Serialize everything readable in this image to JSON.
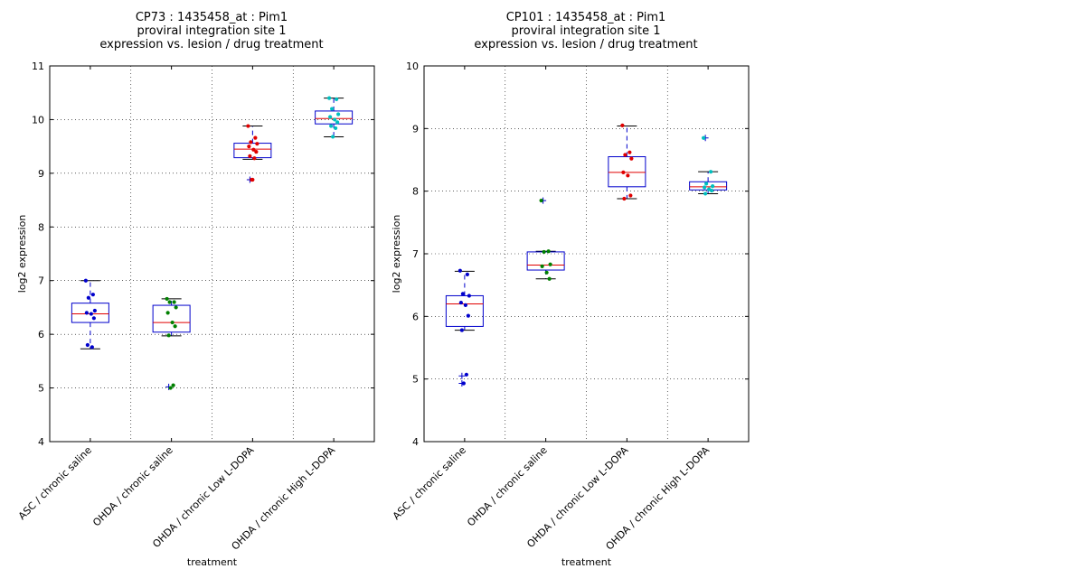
{
  "chart_data": [
    {
      "type": "box",
      "title": [
        "CP73 : 1435458_at : Pim1",
        "proviral integration site 1",
        "expression vs. lesion / drug treatment"
      ],
      "xlabel": "treatment",
      "ylabel": "log2 expression",
      "ylim": [
        4,
        11
      ],
      "yticks": [
        4,
        5,
        6,
        7,
        8,
        9,
        10,
        11
      ],
      "grid": true,
      "categories": [
        "ASC / chronic saline",
        "OHDA / chronic saline",
        "OHDA / chronic Low L-DOPA",
        "OHDA / chronic High L-DOPA"
      ],
      "colors": [
        "#0000cc",
        "#008000",
        "#e00000",
        "#00bfbf"
      ],
      "boxes": [
        {
          "q1": 6.22,
          "median": 6.38,
          "q3": 6.58,
          "whisker_low": 5.73,
          "whisker_high": 7.0,
          "outliers": []
        },
        {
          "q1": 6.04,
          "median": 6.22,
          "q3": 6.54,
          "whisker_low": 5.97,
          "whisker_high": 6.66,
          "outliers": [
            5.02
          ]
        },
        {
          "q1": 9.29,
          "median": 9.45,
          "q3": 9.56,
          "whisker_low": 9.26,
          "whisker_high": 9.88,
          "outliers": [
            8.88
          ]
        },
        {
          "q1": 9.92,
          "median": 10.02,
          "q3": 10.16,
          "whisker_low": 9.68,
          "whisker_high": 10.4,
          "outliers": []
        }
      ],
      "points": [
        [
          7.0,
          6.74,
          6.68,
          6.44,
          6.4,
          6.38,
          6.3,
          5.8,
          5.76
        ],
        [
          6.66,
          6.6,
          6.6,
          6.5,
          6.4,
          6.22,
          6.15,
          5.98,
          5.05,
          5.0
        ],
        [
          9.88,
          9.66,
          9.58,
          9.55,
          9.5,
          9.44,
          9.4,
          9.32,
          9.28,
          8.88,
          8.88
        ],
        [
          10.4,
          10.38,
          10.2,
          10.1,
          10.05,
          10.0,
          9.95,
          9.88,
          9.84,
          9.68
        ]
      ]
    },
    {
      "type": "box",
      "title": [
        "CP101 : 1435458_at : Pim1",
        "proviral integration site 1",
        "expression vs. lesion / drug treatment"
      ],
      "xlabel": "treatment",
      "ylabel": "log2 expression",
      "ylim": [
        4,
        10
      ],
      "yticks": [
        4,
        5,
        6,
        7,
        8,
        9,
        10
      ],
      "grid": true,
      "categories": [
        "ASC / chronic saline",
        "OHDA / chronic saline",
        "OHDA / chronic Low L-DOPA",
        "OHDA / chronic High L-DOPA"
      ],
      "colors": [
        "#0000cc",
        "#008000",
        "#e00000",
        "#00bfbf"
      ],
      "boxes": [
        {
          "q1": 5.84,
          "median": 6.2,
          "q3": 6.33,
          "whisker_low": 5.78,
          "whisker_high": 6.72,
          "outliers": [
            5.05,
            4.93
          ]
        },
        {
          "q1": 6.74,
          "median": 6.82,
          "q3": 7.03,
          "whisker_low": 6.6,
          "whisker_high": 7.04,
          "outliers": [
            7.85
          ]
        },
        {
          "q1": 8.07,
          "median": 8.3,
          "q3": 8.55,
          "whisker_low": 7.88,
          "whisker_high": 9.04,
          "outliers": []
        },
        {
          "q1": 8.02,
          "median": 8.07,
          "q3": 8.15,
          "whisker_low": 7.96,
          "whisker_high": 8.31,
          "outliers": [
            8.85
          ]
        }
      ],
      "points": [
        [
          6.73,
          6.67,
          6.36,
          6.33,
          6.22,
          6.18,
          6.01,
          5.78,
          5.07,
          4.93
        ],
        [
          7.85,
          7.04,
          7.03,
          6.83,
          6.8,
          6.7,
          6.6
        ],
        [
          9.05,
          8.62,
          8.58,
          8.52,
          8.3,
          8.25,
          7.93,
          7.88
        ],
        [
          8.85,
          8.31,
          8.12,
          8.08,
          8.06,
          8.03,
          8.01,
          7.96
        ]
      ]
    }
  ]
}
